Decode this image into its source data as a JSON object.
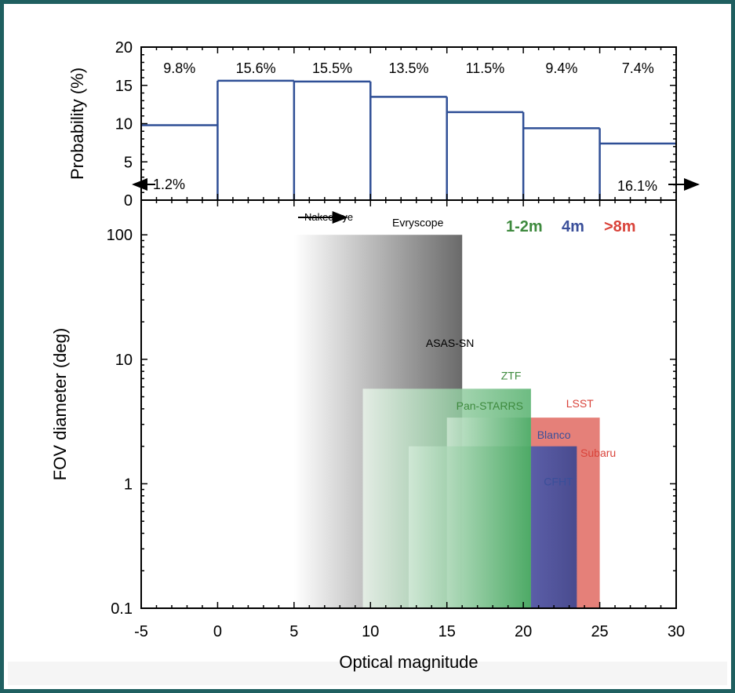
{
  "colors": {
    "frame": "#1f5f60",
    "hist_line": "#2f4f96",
    "group_small": "#3e8a3e",
    "group_mid": "#3a4f9a",
    "group_large": "#d9433a",
    "evryscope": "#6e6e6e",
    "asas_sn": "#555555"
  },
  "chart_data": [
    {
      "type": "bar",
      "panel": "top",
      "ylabel": "Probability (%)",
      "ylim": [
        0,
        20
      ],
      "y_ticks": [
        0,
        5,
        10,
        15,
        20
      ],
      "bins": [
        {
          "from": -5,
          "to": 0,
          "value": 9.8,
          "label": "9.8%"
        },
        {
          "from": 0,
          "to": 5,
          "value": 15.6,
          "label": "15.6%"
        },
        {
          "from": 5,
          "to": 10,
          "value": 15.5,
          "label": "15.5%"
        },
        {
          "from": 10,
          "to": 15,
          "value": 13.5,
          "label": "13.5%"
        },
        {
          "from": 15,
          "to": 20,
          "value": 11.5,
          "label": "11.5%"
        },
        {
          "from": 20,
          "to": 25,
          "value": 9.4,
          "label": "9.4%"
        },
        {
          "from": 25,
          "to": 30,
          "value": 7.4,
          "label": "7.4%"
        }
      ],
      "left_tail": "1.2%",
      "right_tail": "16.1%"
    },
    {
      "type": "area",
      "panel": "bottom",
      "xlabel": "Optical magnitude",
      "ylabel": "FOV diameter (deg)",
      "xlim": [
        -5,
        30
      ],
      "x_ticks": [
        -5,
        0,
        5,
        10,
        15,
        20,
        25,
        30
      ],
      "y_scale": "log",
      "ylim": [
        0.1,
        190
      ],
      "y_ticks": [
        {
          "v": 0.1,
          "label": "0.1"
        },
        {
          "v": 1,
          "label": "1"
        },
        {
          "v": 10,
          "label": "10"
        },
        {
          "v": 100,
          "label": "100"
        }
      ],
      "naked_eye_label": "Naked eye",
      "naked_eye_arrow": [
        6,
        1.5
      ],
      "legend": [
        {
          "label": "1-2m",
          "color": "#3e8a3e"
        },
        {
          "label": "4m",
          "color": "#3a4f9a"
        },
        {
          "label": ">8m",
          "color": "#d9433a"
        }
      ],
      "legend_placement": "top-right",
      "surveys": [
        {
          "name": "Evryscope",
          "mag_min": 5,
          "mag_max": 16,
          "fov": 100,
          "group": "gray",
          "label_color": "#000000",
          "label_at": [
            13.1,
            117
          ]
        },
        {
          "name": "ASAS-SN",
          "mag_min": 5,
          "mag_max": 16,
          "fov": 100,
          "group": "gray_hidden",
          "label_color": "#000000",
          "label_at": [
            15.2,
            12.6
          ]
        },
        {
          "name": "ZTF",
          "mag_min": 9.5,
          "mag_max": 20.5,
          "fov": 5.8,
          "group": "green",
          "label_color": "#3e8a3e",
          "label_at": [
            19.2,
            6.9
          ]
        },
        {
          "name": "Pan-STARRS",
          "mag_min": 15,
          "mag_max": 20.5,
          "fov": 3.4,
          "group": "green",
          "label_color": "#3e8a3e",
          "label_at": [
            17.8,
            3.95
          ]
        },
        {
          "name": "LSST",
          "mag_min": 20.5,
          "mag_max": 25,
          "fov": 3.4,
          "group": "red",
          "label_color": "#d9433a",
          "label_at": [
            23.7,
            4.1
          ]
        },
        {
          "name": "Blanco",
          "mag_min": 20.5,
          "mag_max": 23.5,
          "fov": 2.0,
          "group": "blue",
          "label_color": "#3a4f9a",
          "label_at": [
            22.0,
            2.3
          ]
        },
        {
          "name": "Subaru",
          "mag_min": 20.5,
          "mag_max": 25,
          "fov": 2.0,
          "group": "red_hidden",
          "label_color": "#d9433a",
          "label_at": [
            24.9,
            1.65
          ]
        },
        {
          "name": "CFHT",
          "mag_min": 12.5,
          "mag_max": 20.5,
          "fov": 2.0,
          "group": "green",
          "label_color": "#3a4f9a",
          "label_at": [
            22.3,
            0.97
          ]
        }
      ]
    }
  ]
}
